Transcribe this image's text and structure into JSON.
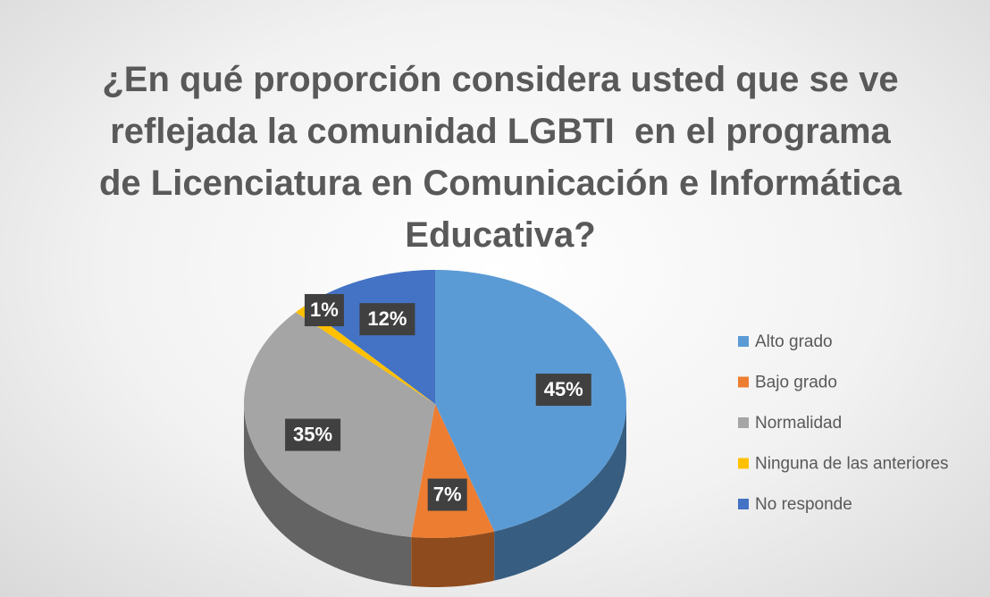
{
  "chart_data": {
    "type": "pie",
    "title": "¿En qué proporción considera usted que se ve reflejada la comunidad LGBTI  en el programa de Licenciatura en Comunicación e Informática Educativa?",
    "categories": [
      "Alto grado",
      "Bajo grado",
      "Normalidad",
      "Ninguna de las anteriores",
      "No responde"
    ],
    "values": [
      45,
      7,
      35,
      1,
      12
    ],
    "value_labels": [
      "45%",
      "7%",
      "35%",
      "1%",
      "12%"
    ],
    "colors": [
      "#5b9bd5",
      "#ed7d31",
      "#a5a5a5",
      "#ffc000",
      "#4472c4"
    ],
    "legend": "right"
  }
}
